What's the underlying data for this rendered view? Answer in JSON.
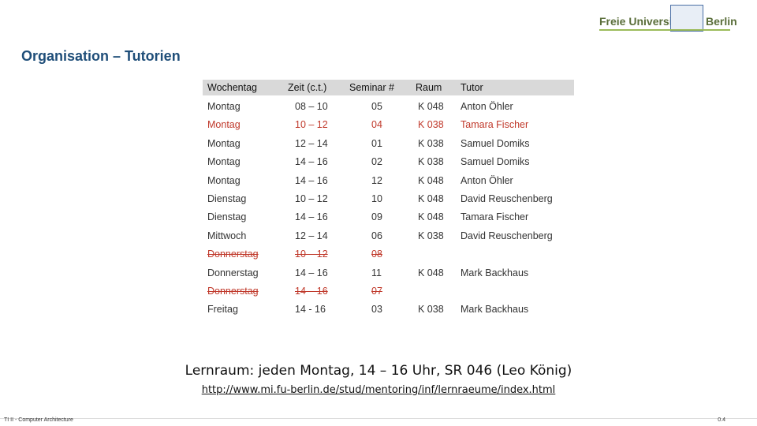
{
  "header": {
    "logo_left": "Freie Universität",
    "logo_right": "Berlin"
  },
  "title": "Organisation – Tutorien",
  "table": {
    "columns": [
      "Wochentag",
      "Zeit (c.t.)",
      "Seminar #",
      "Raum",
      "Tutor"
    ],
    "rows": [
      [
        "Montag",
        "08 – 10",
        "05",
        "K 048",
        "Anton Öhler"
      ],
      [
        "Montag",
        "10 – 12",
        "04",
        "K 038",
        "Tamara Fischer"
      ],
      [
        "Montag",
        "12 – 14",
        "01",
        "K 038",
        "Samuel Domiks"
      ],
      [
        "Montag",
        "14 – 16",
        "02",
        "K 038",
        "Samuel Domiks"
      ],
      [
        "Montag",
        "14 – 16",
        "12",
        "K 048",
        "Anton Öhler"
      ],
      [
        "Dienstag",
        "10 – 12",
        "10",
        "K 048",
        "David Reuschenberg"
      ],
      [
        "Dienstag",
        "14 – 16",
        "09",
        "K 048",
        "Tamara Fischer"
      ],
      [
        "Mittwoch",
        "12 – 14",
        "06",
        "K 038",
        "David Reuschenberg"
      ],
      [
        "Donnerstag",
        "10 – 12",
        "08"
      ],
      [
        "Donnerstag",
        "14 – 16",
        "11",
        "K 048",
        "Mark Backhaus"
      ],
      [
        "Donnerstag",
        "14 – 16",
        "07"
      ],
      [
        "Freitag",
        "14 - 16",
        "03",
        "K 038",
        "Mark Backhaus"
      ]
    ],
    "red_rows": [
      1,
      8,
      10
    ],
    "struck_rows": [
      8,
      10
    ],
    "highlight_color": "#c0392b"
  },
  "note": "Lernraum: jeden Montag, 14 – 16 Uhr, SR 046 (Leo König)",
  "link": "http://www.mi.fu-berlin.de/stud/mentoring/inf/lernraeume/index.html",
  "footer": {
    "course": "TI II - Computer Architecture",
    "page": "0.4"
  }
}
